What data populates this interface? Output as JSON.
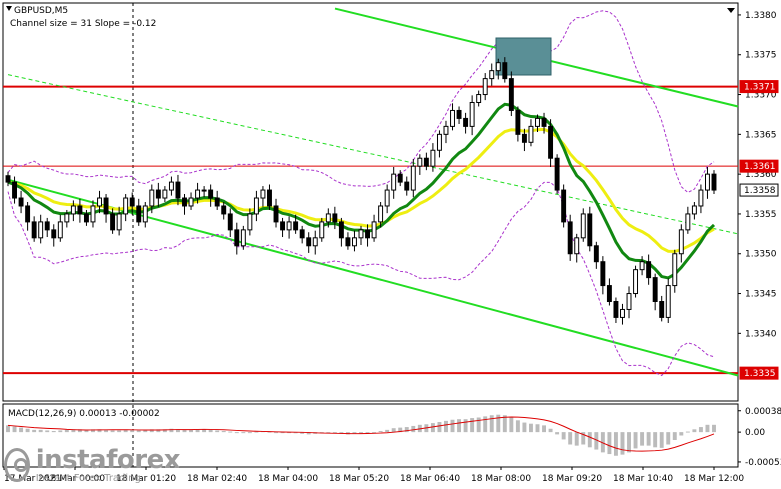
{
  "header": {
    "symbol": "GBPUSD,M5",
    "indicator": "Channel size = 31 Slope = -0.12"
  },
  "macd_label": "MACD(12,26,9) 0.00013 -0.00002",
  "watermark": {
    "brand": "instaforex",
    "tagline": "Instant Forex Trading"
  },
  "colors": {
    "candle": "#000000",
    "channel": "#22dd22",
    "resistance": "#dd0000",
    "ma_green": "#118811",
    "ma_yellow": "#eeee11",
    "bollinger": "#aa33cc",
    "macd_hist": "#bbbbbb",
    "macd_signal": "#dd0000",
    "highlight_box": "#5a8f96"
  },
  "chart_data": {
    "type": "candlestick",
    "price_axis": {
      "range": [
        1.33315,
        1.33815
      ],
      "ticks": [
        "1.3380",
        "1.3375",
        "1.3370",
        "1.3365",
        "1.3360",
        "1.3355",
        "1.3350",
        "1.3345",
        "1.3340"
      ]
    },
    "price_labels": [
      {
        "text": "1.3371",
        "value": 1.3371,
        "style": "red"
      },
      {
        "text": "1.3361",
        "value": 1.3361,
        "style": "red"
      },
      {
        "text": "1.3358",
        "value": 1.3358,
        "style": "black"
      },
      {
        "text": "1.3335",
        "value": 1.3335,
        "style": "red"
      }
    ],
    "horizontal_levels": [
      1.3371,
      1.3361,
      1.3335
    ],
    "time_labels": [
      "17 Mar 2021",
      "18 Mar 00:00",
      "18 Mar 01:20",
      "18 Mar 02:40",
      "18 Mar 04:00",
      "18 Mar 05:20",
      "18 Mar 06:40",
      "18 Mar 08:00",
      "18 Mar 09:20",
      "18 Mar 10:40",
      "18 Mar 12:00"
    ],
    "macd_axis": {
      "range": [
        -0.00062,
        0.0005
      ],
      "ticks": [
        "0.00038",
        "0.00",
        "-0.00053"
      ]
    },
    "closes": [
      1.3359,
      1.3357,
      1.3356,
      1.3354,
      1.3352,
      1.3354,
      1.3353,
      1.3352,
      1.3354,
      1.3355,
      1.3356,
      1.3355,
      1.3354,
      1.3356,
      1.3357,
      1.3355,
      1.3353,
      1.3355,
      1.3357,
      1.3356,
      1.3354,
      1.3356,
      1.3358,
      1.3357,
      1.3358,
      1.3359,
      1.3357,
      1.3356,
      1.3357,
      1.3358,
      1.3358,
      1.3357,
      1.3356,
      1.3355,
      1.3353,
      1.3351,
      1.3353,
      1.3355,
      1.3357,
      1.3358,
      1.3356,
      1.3354,
      1.3353,
      1.3354,
      1.3353,
      1.3352,
      1.3351,
      1.3352,
      1.3354,
      1.3355,
      1.3354,
      1.3352,
      1.3351,
      1.3352,
      1.3353,
      1.3352,
      1.3354,
      1.3356,
      1.3358,
      1.336,
      1.3359,
      1.3358,
      1.3361,
      1.3362,
      1.3361,
      1.3363,
      1.3365,
      1.3366,
      1.3368,
      1.3367,
      1.3366,
      1.3369,
      1.337,
      1.3372,
      1.3373,
      1.3374,
      1.3372,
      1.3368,
      1.3365,
      1.3364,
      1.3366,
      1.3367,
      1.3366,
      1.3362,
      1.3358,
      1.3354,
      1.335,
      1.3352,
      1.3355,
      1.3351,
      1.3349,
      1.3346,
      1.3344,
      1.3342,
      1.3343,
      1.3345,
      1.3348,
      1.3349,
      1.3347,
      1.3344,
      1.3342,
      1.3346,
      1.335,
      1.3353,
      1.3355,
      1.3356,
      1.3358,
      1.336,
      1.3358
    ],
    "macd_histogram": [
      0.00012,
      0.0001,
      8e-05,
      6e-05,
      4e-05,
      4e-05,
      3e-05,
      2e-05,
      3e-05,
      4e-05,
      5e-05,
      5e-05,
      4e-05,
      5e-05,
      5e-05,
      4e-05,
      3e-05,
      3e-05,
      4e-05,
      4e-05,
      3e-05,
      4e-05,
      5e-05,
      5e-05,
      5e-05,
      6e-05,
      5e-05,
      4e-05,
      4e-05,
      5e-05,
      5e-05,
      4e-05,
      3e-05,
      2e-05,
      1e-05,
      -1e-05,
      -1e-05,
      0.0,
      1e-05,
      2e-05,
      1e-05,
      0.0,
      -1e-05,
      -1e-05,
      -2e-05,
      -3e-05,
      -4e-05,
      -3e-05,
      -2e-05,
      -1e-05,
      -2e-05,
      -3e-05,
      -4e-05,
      -3e-05,
      -2e-05,
      -2e-05,
      0.0,
      2e-05,
      4e-05,
      7e-05,
      8e-05,
      9e-05,
      0.00011,
      0.00013,
      0.00014,
      0.00016,
      0.00018,
      0.0002,
      0.00022,
      0.00023,
      0.00023,
      0.00025,
      0.00026,
      0.00028,
      0.0003,
      0.00031,
      0.0003,
      0.00026,
      0.00021,
      0.00017,
      0.00015,
      0.00014,
      0.00012,
      6e-05,
      -4e-05,
      -0.00013,
      -0.00022,
      -0.00024,
      -0.00022,
      -0.00027,
      -0.00031,
      -0.00036,
      -0.00039,
      -0.00042,
      -0.0004,
      -0.00036,
      -0.00029,
      -0.00024,
      -0.00024,
      -0.00027,
      -0.00028,
      -0.00022,
      -0.00014,
      -6e-05,
      1e-05,
      5e-05,
      9e-05,
      0.00013,
      0.00013
    ]
  }
}
